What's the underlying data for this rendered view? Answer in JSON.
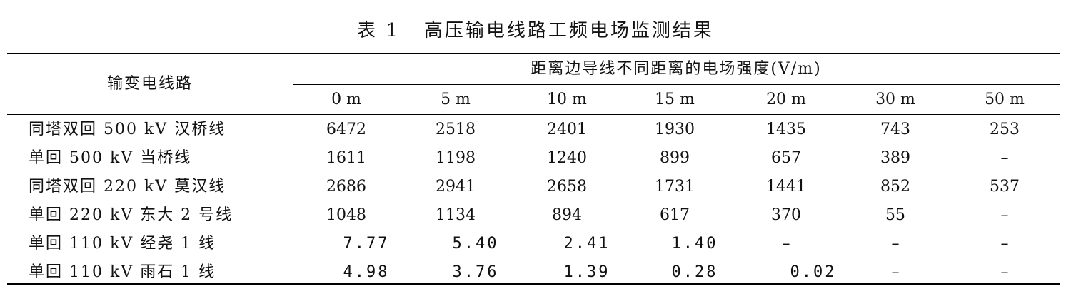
{
  "caption": {
    "number": "表 1",
    "title": "高压输电线路工频电场监测结果"
  },
  "table": {
    "row_header": "输变电线路",
    "group_header": "距离边导线不同距离的电场强度(V/m)",
    "columns": [
      "0 m",
      "5 m",
      "10 m",
      "15 m",
      "20 m",
      "30 m",
      "50 m"
    ],
    "rows": [
      {
        "line": "同塔双回 500 kV 汉桥线",
        "values": [
          "6472",
          "2518",
          "2401",
          "1930",
          "1435",
          "743",
          "253"
        ]
      },
      {
        "line": "单回 500 kV 当桥线",
        "values": [
          "1611",
          "1198",
          "1240",
          "899",
          "657",
          "389",
          "–"
        ]
      },
      {
        "line": "同塔双回 220 kV 莫汉线",
        "values": [
          "2686",
          "2941",
          "2658",
          "1731",
          "1441",
          "852",
          "537"
        ]
      },
      {
        "line": "单回 220 kV 东大 2 号线",
        "values": [
          "1048",
          "1134",
          "894",
          "617",
          "370",
          "55",
          "–"
        ]
      },
      {
        "line": "单回 110 kV 经尧 1 线",
        "values": [
          "7.77",
          "5.40",
          "2.41",
          "1.40",
          "–",
          "–",
          "–"
        ]
      },
      {
        "line": "单回 110 kV 雨石 1 线",
        "values": [
          "4.98",
          "3.76",
          "1.39",
          "0.28",
          "0.02",
          "–",
          "–"
        ]
      }
    ]
  }
}
